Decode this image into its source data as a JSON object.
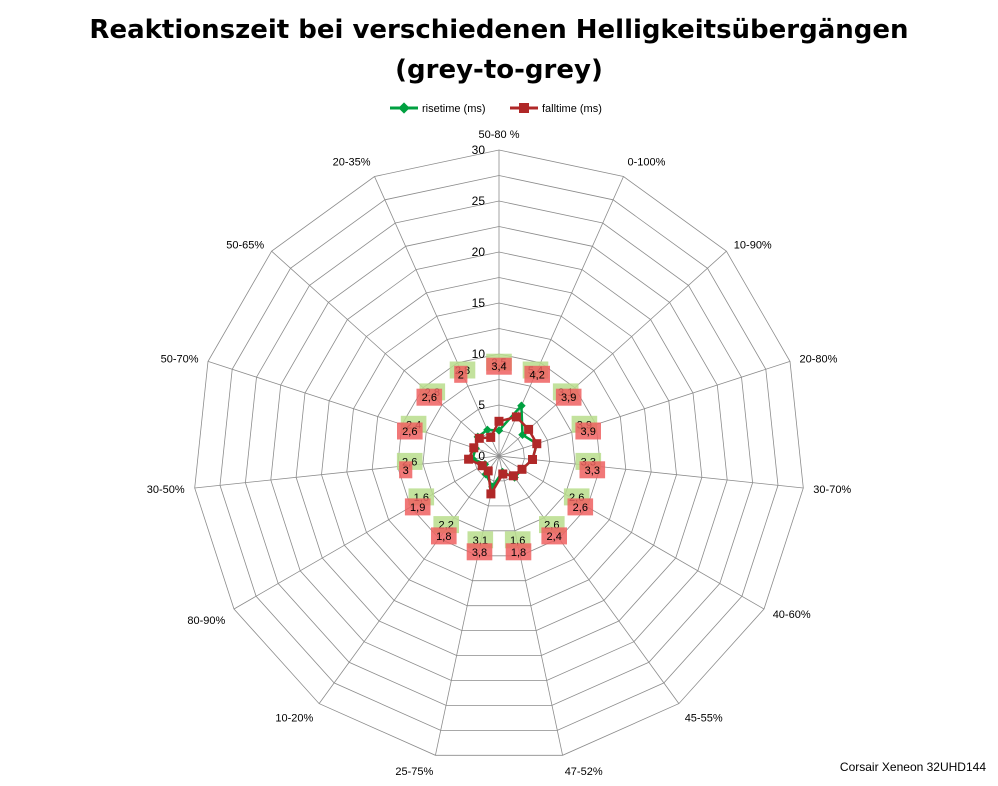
{
  "title": {
    "line1": "Reaktionszeit bei verschiedenen Helligkeitsübergängen",
    "line2": "(grey-to-grey)"
  },
  "footer": {
    "text": "Corsair Xeneon 32UHD144"
  },
  "chart_data": {
    "type": "radar",
    "categories": [
      "50-80 %",
      "0-100%",
      "10-90%",
      "20-80%",
      "30-70%",
      "40-60%",
      "45-55%",
      "47-52%",
      "25-75%",
      "10-20%",
      "80-90%",
      "30-50%",
      "50-70%",
      "50-65%",
      "20-35%"
    ],
    "rlim": [
      0,
      30
    ],
    "rticks": [
      0,
      5,
      10,
      15,
      20,
      25,
      30
    ],
    "grid": true,
    "legend": "top",
    "series": [
      {
        "name": "risetime (ms)",
        "color": "#00a040",
        "label_color": "#b9dd8c",
        "values": [
          2.5,
          5.4,
          3.1,
          3.9,
          3.3,
          2.6,
          2.6,
          1.6,
          3.1,
          2.2,
          1.6,
          2.6,
          2.4,
          2.8,
          2.8
        ],
        "labels": [
          "2,5",
          "5,4",
          "3,1",
          "3,9",
          "3,3",
          "2,6",
          "2,6",
          "1,6",
          "3,1",
          "2,2",
          "1,6",
          "2,6",
          "2,4",
          "2,8",
          "2,8"
        ]
      },
      {
        "name": "falltime (ms)",
        "color": "#b02828",
        "label_color": "#ee6060",
        "values": [
          3.4,
          4.2,
          3.9,
          3.9,
          3.3,
          2.6,
          2.4,
          1.8,
          3.8,
          1.8,
          1.9,
          3.0,
          2.6,
          2.6,
          2.0
        ],
        "labels": [
          "3,4",
          "4,2",
          "3,9",
          "3,9",
          "3,3",
          "2,6",
          "2,4",
          "1,8",
          "3,8",
          "1,8",
          "1,9",
          "3",
          "2,6",
          "2,6",
          "2"
        ]
      }
    ]
  }
}
